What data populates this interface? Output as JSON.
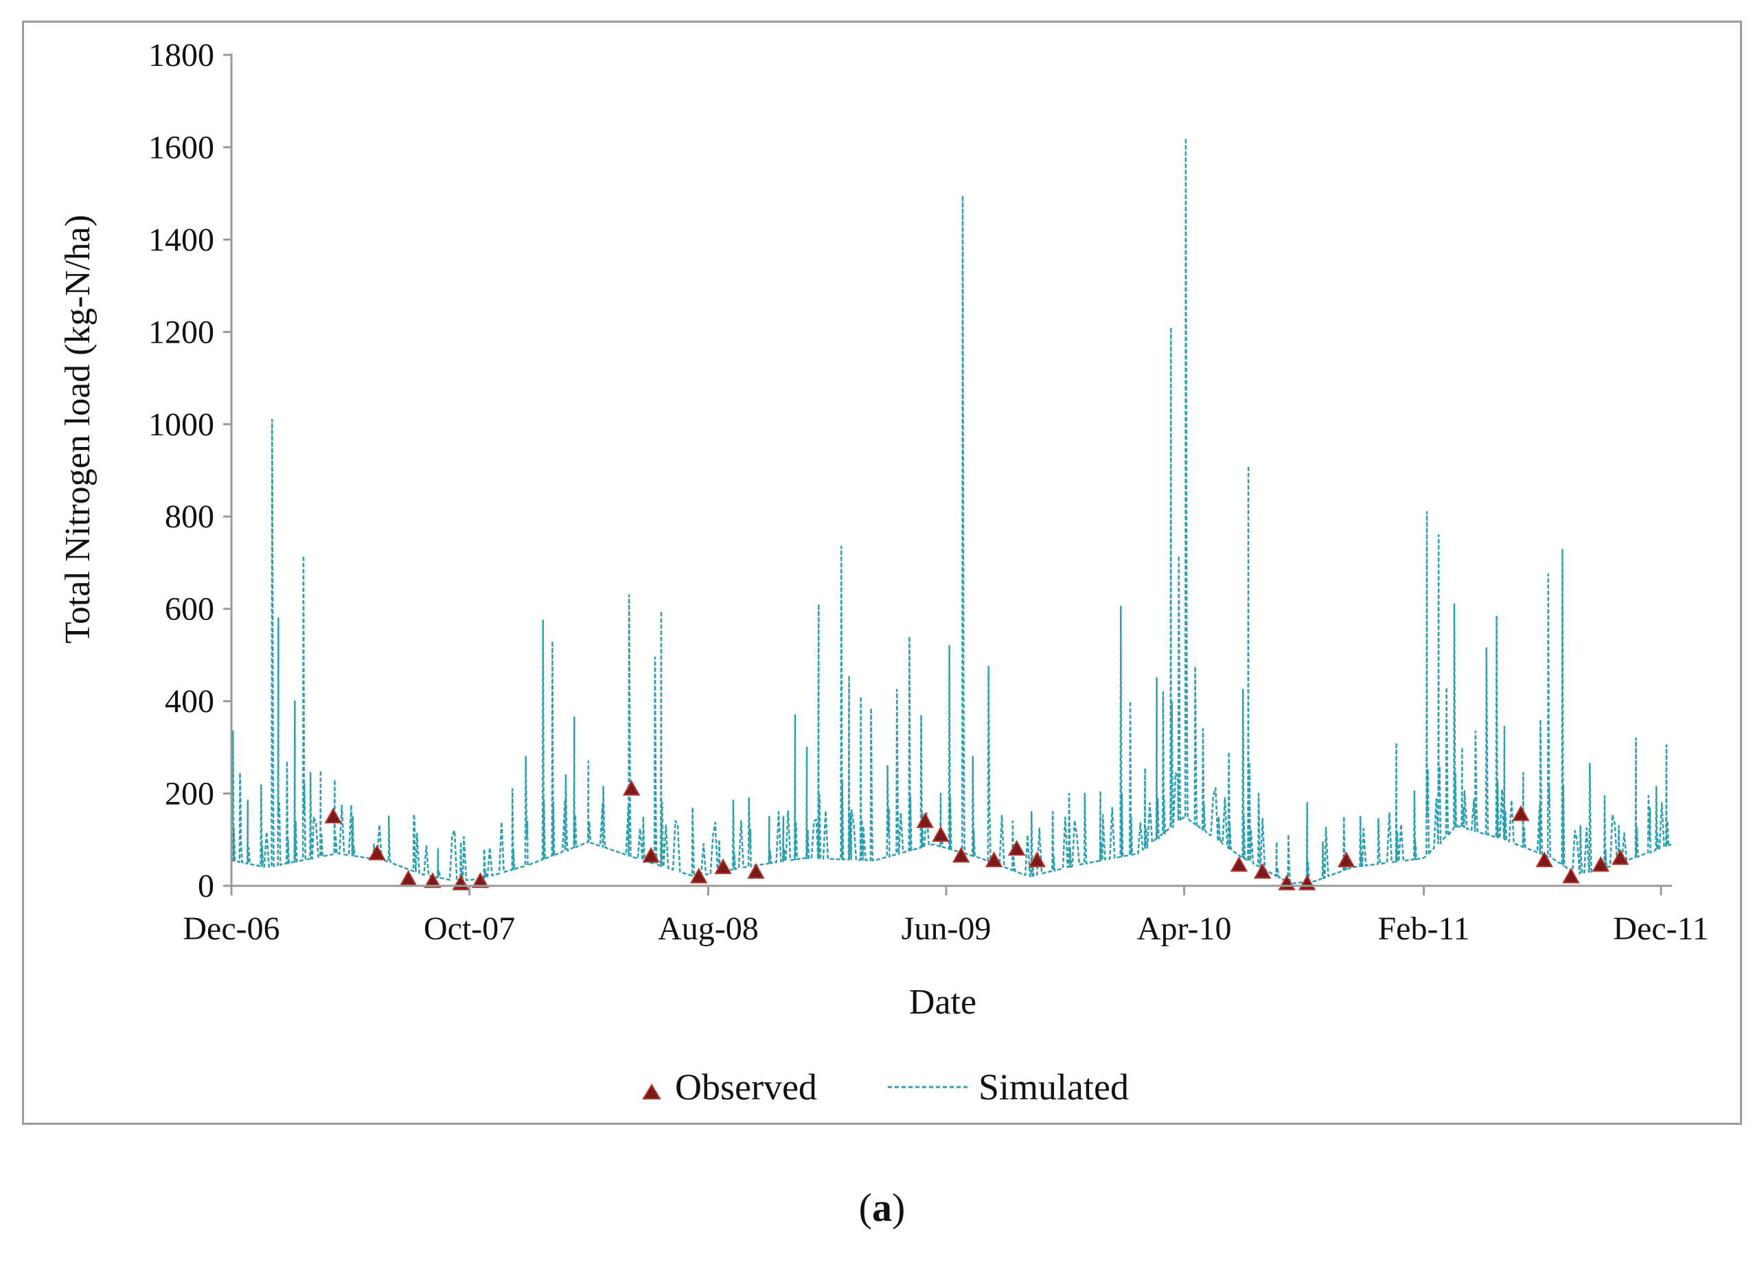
{
  "chart_data": {
    "type": "line",
    "title": "",
    "xlabel": "Date",
    "ylabel": "Total Nitrogen load (kg-N/ha)",
    "ylim": [
      0,
      1800
    ],
    "yticks": [
      0,
      200,
      400,
      600,
      800,
      1000,
      1200,
      1400,
      1600,
      1800
    ],
    "xlim": [
      "2006-12-01",
      "2011-12-15"
    ],
    "xtick_labels": [
      {
        "date": "2006-12-01",
        "label": "Dec-06"
      },
      {
        "date": "2007-10-01",
        "label": "Oct-07"
      },
      {
        "date": "2008-08-01",
        "label": "Aug-08"
      },
      {
        "date": "2009-06-01",
        "label": "Jun-09"
      },
      {
        "date": "2010-04-01",
        "label": "Apr-10"
      },
      {
        "date": "2011-02-01",
        "label": "Feb-11"
      },
      {
        "date": "2011-12-01",
        "label": "Dec-11"
      }
    ],
    "grid": false,
    "legend": "bottom-center",
    "colors": {
      "simulated": "#2a9fb0",
      "observed": "#7a1a1a"
    },
    "series": [
      {
        "name": "Simulated",
        "style": "dashed-line",
        "baseline": [
          [
            "2006-12-01",
            55
          ],
          [
            "2007-01-15",
            40
          ],
          [
            "2007-04-15",
            70
          ],
          [
            "2007-06-15",
            55
          ],
          [
            "2007-08-01",
            25
          ],
          [
            "2007-09-15",
            10
          ],
          [
            "2007-10-15",
            15
          ],
          [
            "2007-12-15",
            45
          ],
          [
            "2008-03-01",
            95
          ],
          [
            "2008-05-01",
            60
          ],
          [
            "2008-07-15",
            20
          ],
          [
            "2008-09-15",
            40
          ],
          [
            "2008-12-01",
            60
          ],
          [
            "2009-03-01",
            55
          ],
          [
            "2009-05-15",
            90
          ],
          [
            "2009-07-15",
            60
          ],
          [
            "2009-09-15",
            20
          ],
          [
            "2009-11-15",
            45
          ],
          [
            "2010-02-01",
            70
          ],
          [
            "2010-04-01",
            150
          ],
          [
            "2010-06-15",
            60
          ],
          [
            "2010-08-15",
            5
          ],
          [
            "2010-09-15",
            10
          ],
          [
            "2010-11-01",
            40
          ],
          [
            "2011-02-01",
            60
          ],
          [
            "2011-03-15",
            130
          ],
          [
            "2011-05-15",
            100
          ],
          [
            "2011-07-15",
            60
          ],
          [
            "2011-08-15",
            25
          ],
          [
            "2011-09-15",
            35
          ],
          [
            "2011-12-15",
            90
          ]
        ],
        "peaks": [
          [
            "2006-12-03",
            335
          ],
          [
            "2006-12-12",
            245
          ],
          [
            "2006-12-22",
            185
          ],
          [
            "2007-01-08",
            220
          ],
          [
            "2007-01-22",
            1010
          ],
          [
            "2007-01-30",
            580
          ],
          [
            "2007-02-10",
            270
          ],
          [
            "2007-02-20",
            400
          ],
          [
            "2007-03-03",
            715
          ],
          [
            "2007-03-12",
            245
          ],
          [
            "2007-03-25",
            250
          ],
          [
            "2007-04-12",
            230
          ],
          [
            "2007-05-05",
            150
          ],
          [
            "2007-06-01",
            90
          ],
          [
            "2007-06-20",
            75
          ],
          [
            "2007-07-22",
            155
          ],
          [
            "2007-08-22",
            80
          ],
          [
            "2007-09-20",
            95
          ],
          [
            "2007-10-20",
            80
          ],
          [
            "2007-11-25",
            210
          ],
          [
            "2007-12-12",
            280
          ],
          [
            "2008-01-03",
            575
          ],
          [
            "2008-01-15",
            530
          ],
          [
            "2008-02-01",
            240
          ],
          [
            "2008-02-12",
            365
          ],
          [
            "2008-03-01",
            270
          ],
          [
            "2008-03-20",
            215
          ],
          [
            "2008-04-22",
            630
          ],
          [
            "2008-05-10",
            150
          ],
          [
            "2008-05-25",
            495
          ],
          [
            "2008-06-02",
            595
          ],
          [
            "2008-07-12",
            170
          ],
          [
            "2008-08-15",
            100
          ],
          [
            "2008-09-02",
            185
          ],
          [
            "2008-09-22",
            190
          ],
          [
            "2008-10-18",
            150
          ],
          [
            "2008-11-05",
            150
          ],
          [
            "2008-11-20",
            370
          ],
          [
            "2008-12-05",
            300
          ],
          [
            "2008-12-20",
            610
          ],
          [
            "2009-01-18",
            735
          ],
          [
            "2009-01-28",
            455
          ],
          [
            "2009-02-12",
            410
          ],
          [
            "2009-02-25",
            385
          ],
          [
            "2009-03-18",
            260
          ],
          [
            "2009-03-30",
            425
          ],
          [
            "2009-04-15",
            540
          ],
          [
            "2009-04-30",
            370
          ],
          [
            "2009-05-25",
            200
          ],
          [
            "2009-06-05",
            520
          ],
          [
            "2009-06-22",
            1495
          ],
          [
            "2009-07-05",
            280
          ],
          [
            "2009-07-25",
            475
          ],
          [
            "2009-08-25",
            140
          ],
          [
            "2009-09-18",
            160
          ],
          [
            "2009-10-15",
            160
          ],
          [
            "2009-11-05",
            200
          ],
          [
            "2009-11-25",
            200
          ],
          [
            "2009-12-15",
            205
          ],
          [
            "2010-01-10",
            605
          ],
          [
            "2010-01-22",
            400
          ],
          [
            "2010-02-10",
            255
          ],
          [
            "2010-02-25",
            450
          ],
          [
            "2010-03-05",
            420
          ],
          [
            "2010-03-15",
            1210
          ],
          [
            "2010-03-25",
            715
          ],
          [
            "2010-04-03",
            1620
          ],
          [
            "2010-04-15",
            475
          ],
          [
            "2010-04-25",
            340
          ],
          [
            "2010-05-15",
            150
          ],
          [
            "2010-05-28",
            290
          ],
          [
            "2010-06-15",
            425
          ],
          [
            "2010-06-22",
            910
          ],
          [
            "2010-07-05",
            200
          ],
          [
            "2010-07-28",
            95
          ],
          [
            "2010-08-12",
            95
          ],
          [
            "2010-09-05",
            180
          ],
          [
            "2010-09-25",
            95
          ],
          [
            "2010-10-22",
            150
          ],
          [
            "2010-11-12",
            150
          ],
          [
            "2010-12-05",
            145
          ],
          [
            "2010-12-28",
            310
          ],
          [
            "2011-01-20",
            205
          ],
          [
            "2011-02-05",
            810
          ],
          [
            "2011-02-20",
            760
          ],
          [
            "2011-03-02",
            430
          ],
          [
            "2011-03-12",
            610
          ],
          [
            "2011-03-22",
            300
          ],
          [
            "2011-04-08",
            335
          ],
          [
            "2011-04-22",
            515
          ],
          [
            "2011-05-05",
            585
          ],
          [
            "2011-05-15",
            345
          ],
          [
            "2011-06-08",
            245
          ],
          [
            "2011-06-30",
            360
          ],
          [
            "2011-07-10",
            675
          ],
          [
            "2011-07-28",
            730
          ],
          [
            "2011-08-20",
            130
          ],
          [
            "2011-09-01",
            265
          ],
          [
            "2011-09-20",
            195
          ],
          [
            "2011-10-08",
            130
          ],
          [
            "2011-10-30",
            320
          ],
          [
            "2011-11-15",
            195
          ],
          [
            "2011-11-25",
            215
          ],
          [
            "2011-12-08",
            305
          ],
          [
            "2011-12-16",
            170
          ]
        ]
      },
      {
        "name": "Observed",
        "style": "triangle-markers",
        "points": [
          [
            "2007-04-10",
            150
          ],
          [
            "2007-06-05",
            70
          ],
          [
            "2007-07-15",
            15
          ],
          [
            "2007-08-15",
            10
          ],
          [
            "2007-09-20",
            5
          ],
          [
            "2007-10-15",
            10
          ],
          [
            "2008-04-25",
            210
          ],
          [
            "2008-05-20",
            65
          ],
          [
            "2008-07-20",
            20
          ],
          [
            "2008-08-20",
            40
          ],
          [
            "2008-10-01",
            30
          ],
          [
            "2009-06-20",
            65
          ],
          [
            "2009-08-01",
            55
          ],
          [
            "2009-08-30",
            80
          ],
          [
            "2009-09-25",
            55
          ],
          [
            "2010-06-10",
            45
          ],
          [
            "2010-07-10",
            30
          ],
          [
            "2010-08-10",
            5
          ],
          [
            "2010-09-05",
            5
          ],
          [
            "2010-10-25",
            55
          ],
          [
            "2011-06-05",
            155
          ],
          [
            "2011-07-05",
            55
          ],
          [
            "2011-08-08",
            20
          ],
          [
            "2011-09-15",
            45
          ],
          [
            "2011-10-10",
            60
          ],
          [
            "2009-05-05",
            140
          ],
          [
            "2009-05-25",
            110
          ]
        ]
      }
    ],
    "legend_entries": [
      "Observed",
      "Simulated"
    ]
  },
  "panel_label": "a",
  "panel_label_open": "(",
  "panel_label_close": ")"
}
